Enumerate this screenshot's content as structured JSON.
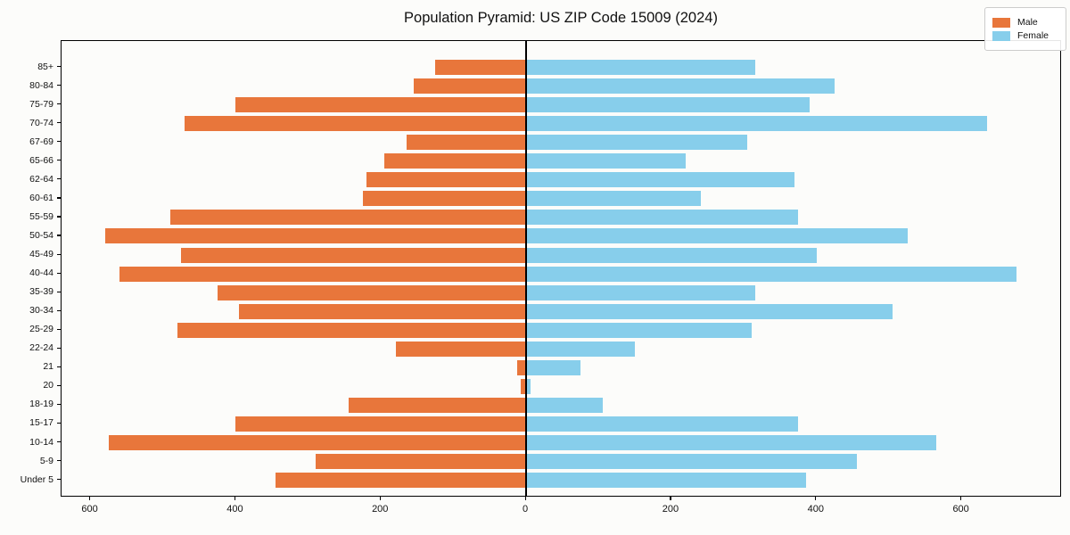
{
  "title": "Population Pyramid: US ZIP Code 15009 (2024)",
  "legend": {
    "male": "Male",
    "female": "Female"
  },
  "colors": {
    "male": "#e8763b",
    "female": "#87ceeb",
    "axis": "#000000",
    "zero_line": "#000000",
    "background": "#fcfcfa",
    "legend_border": "#cccccc"
  },
  "chart_data": {
    "type": "bar",
    "subtype": "population-pyramid",
    "orientation": "horizontal",
    "title": "Population Pyramid: US ZIP Code 15009 (2024)",
    "categories": [
      "85+",
      "80-84",
      "75-79",
      "70-74",
      "67-69",
      "65-66",
      "62-64",
      "60-61",
      "55-59",
      "50-54",
      "45-49",
      "40-44",
      "35-39",
      "30-34",
      "25-29",
      "22-24",
      "21",
      "20",
      "18-19",
      "15-17",
      "10-14",
      "5-9",
      "Under 5"
    ],
    "series": [
      {
        "name": "Male",
        "side": "left",
        "color": "#e8763b",
        "values": [
          125,
          155,
          400,
          470,
          165,
          195,
          220,
          225,
          490,
          580,
          475,
          560,
          425,
          395,
          480,
          180,
          12,
          8,
          245,
          400,
          575,
          290,
          345
        ]
      },
      {
        "name": "Female",
        "side": "right",
        "color": "#87ceeb",
        "values": [
          315,
          425,
          390,
          635,
          305,
          220,
          370,
          240,
          375,
          525,
          400,
          675,
          315,
          505,
          310,
          150,
          75,
          6,
          105,
          375,
          565,
          455,
          385
        ]
      }
    ],
    "x_ticks": [
      -600,
      -400,
      -200,
      0,
      200,
      400,
      600
    ],
    "x_tick_labels": [
      "600",
      "400",
      "200",
      "0",
      "200",
      "400",
      "600"
    ],
    "xlim": [
      -640,
      738
    ],
    "xlabel": "",
    "ylabel": "",
    "legend_position": "upper right",
    "grid": false
  }
}
